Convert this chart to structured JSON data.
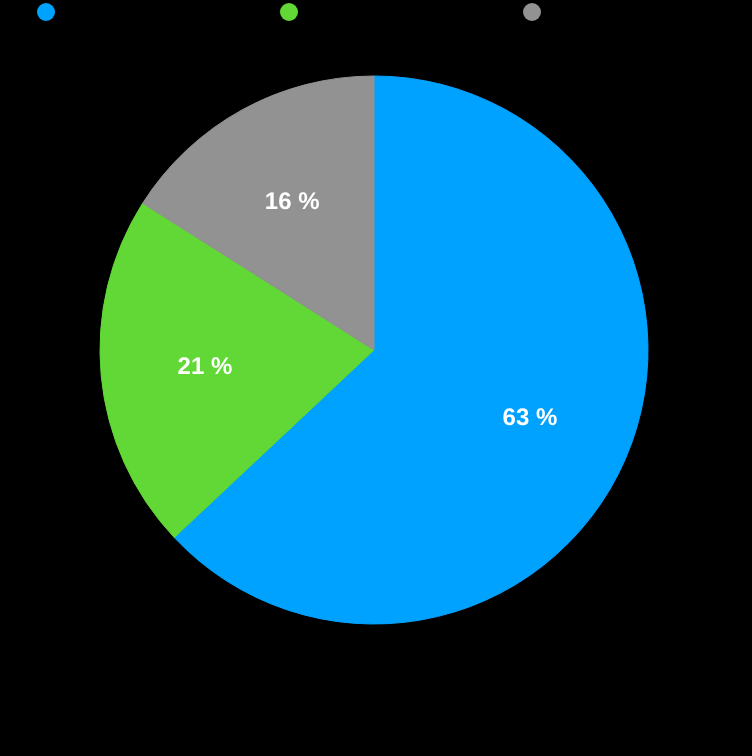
{
  "chart_data": {
    "type": "pie",
    "categories": [
      null,
      null,
      null
    ],
    "values": [
      63,
      21,
      16
    ],
    "colors": [
      "#00a2ff",
      "#61d836",
      "#929292"
    ],
    "value_labels": [
      "63 %",
      "21 %",
      "16 %"
    ]
  }
}
